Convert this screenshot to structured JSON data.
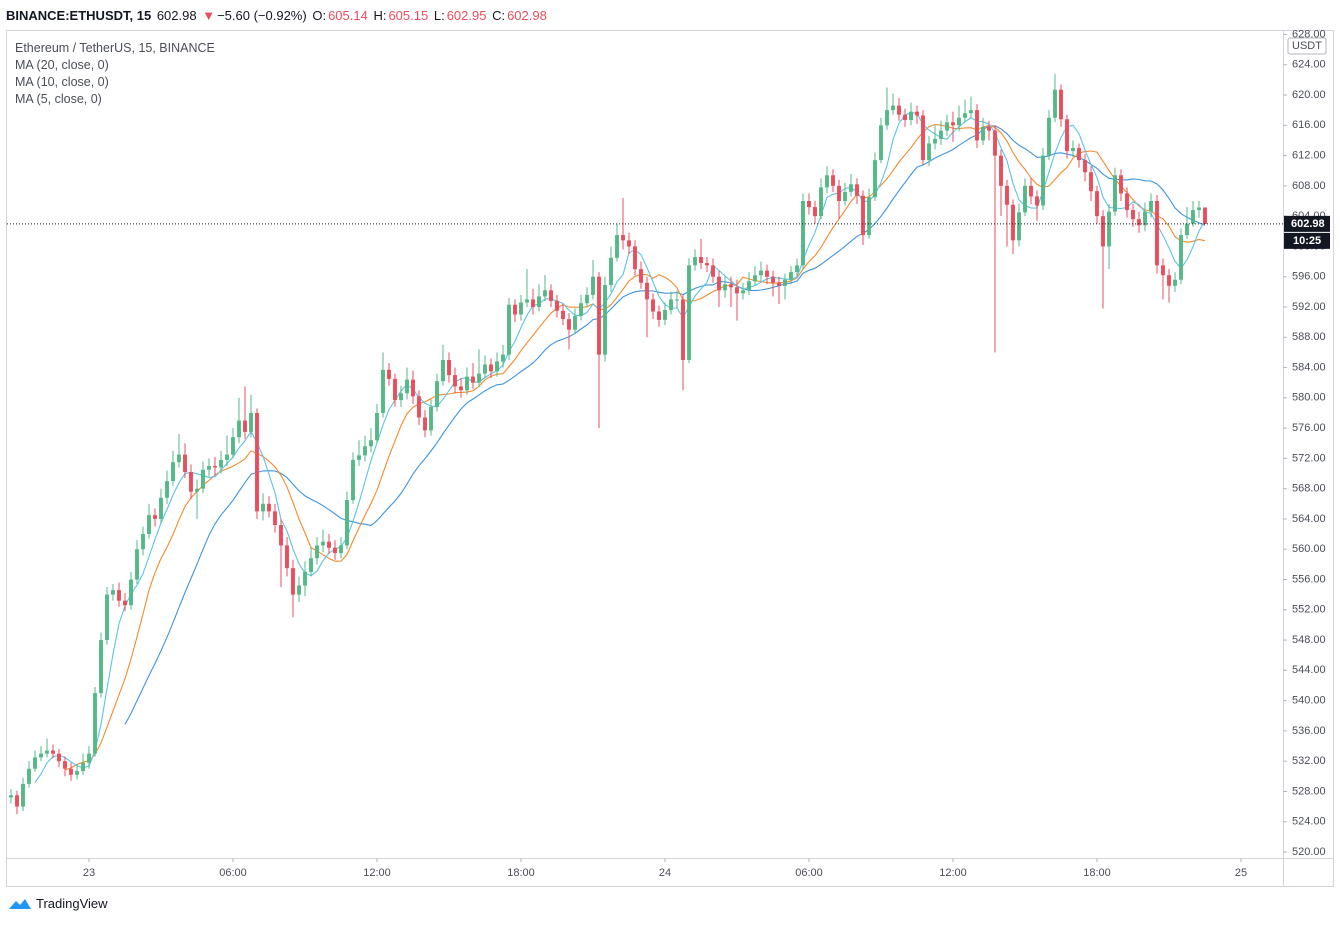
{
  "header": {
    "symbol": "BINANCE:ETHUSDT, 15",
    "arrow": "▼",
    "change": "−5.60 (−0.92%)",
    "o": "O:",
    "h": "H:",
    "l": "L:",
    "c": "C:"
  },
  "legend": {
    "title": "Ethereum / TetherUS, 15, BINANCE"
  },
  "axis_currency": "USDT",
  "countdown": "10:25",
  "brand": "TradingView",
  "chart_data": {
    "type": "candlestick",
    "up_color": "#53b987",
    "down_color": "#eb4d5c",
    "open": [
      527.2,
      527.5,
      526.0,
      529.0,
      531.0,
      532.5,
      533.0,
      533.4,
      533.0,
      532.0,
      531.0,
      530.2,
      530.7,
      531.8,
      533.0,
      541.0,
      548.0,
      554.0,
      554.6,
      553.2,
      552.6,
      556.0,
      560.0,
      562.0,
      564.5,
      564.0,
      566.8,
      569.0,
      571.5,
      572.5,
      570.2,
      567.6,
      568.0,
      570.5,
      571.0,
      570.8,
      571.8,
      572.5,
      574.8,
      577.0,
      575.5,
      578.0,
      565.0,
      566.0,
      565.0,
      563.2,
      560.5,
      557.5,
      554.0,
      555.2,
      557.0,
      558.8,
      560.5,
      561.0,
      560.2,
      559.5,
      560.5,
      566.5,
      571.8,
      572.4,
      573.6,
      574.4,
      578.0,
      583.7,
      582.5,
      579.7,
      580.6,
      582.4,
      580.2,
      577.4,
      575.7,
      578.8,
      582.2,
      585.0,
      583.0,
      581.5,
      581.0,
      582.8,
      582.0,
      583.2,
      584.4,
      583.5,
      584.8,
      585.7,
      592.3,
      591.0,
      592.6,
      593.0,
      592.0,
      593.4,
      594.2,
      592.8,
      591.5,
      590.4,
      589.0,
      590.8,
      592.5,
      593.6,
      596.0,
      585.7,
      594.9,
      598.5,
      601.5,
      600.8,
      600.0,
      597.0,
      595.2,
      593.0,
      591.4,
      590.3,
      591.6,
      593.0,
      593.0,
      585.0,
      597.5,
      598.6,
      597.8,
      597.5,
      596.0,
      594.2,
      595.0,
      594.6,
      593.8,
      594.2,
      595.4,
      596.2,
      596.8,
      596.0,
      595.2,
      594.8,
      595.6,
      596.6,
      597.5,
      606.0,
      605.2,
      604.0,
      607.8,
      609.4,
      608.0,
      606.0,
      607.2,
      608.2,
      606.7,
      601.5,
      606.5,
      611.4,
      616.0,
      618.0,
      618.6,
      617.4,
      616.7,
      617.8,
      617.3,
      611.4,
      613.6,
      614.2,
      615.3,
      616.4,
      616.0,
      617.0,
      617.6,
      618.0,
      614.0,
      615.8,
      615.3,
      612.0,
      608.0,
      605.5,
      600.8,
      604.5,
      608.0,
      606.6,
      605.4,
      612.0,
      617.0,
      620.7,
      616.8,
      612.6,
      613.0,
      611.4,
      609.8,
      607.3,
      604.0,
      600.0,
      604.6,
      609.4,
      607.0,
      604.8,
      603.6,
      602.8,
      604.6,
      606.0,
      597.5,
      596.2,
      594.8,
      595.6,
      601.5,
      603.0,
      604.8,
      605.14
    ],
    "high": [
      528.3,
      528.1,
      529.8,
      532.0,
      533.4,
      534.0,
      535.0,
      534.2,
      533.6,
      532.6,
      531.8,
      531.6,
      533.0,
      534.0,
      541.8,
      549.0,
      555.0,
      555.4,
      555.6,
      554.2,
      557.0,
      561.2,
      563.0,
      566.0,
      565.4,
      568.0,
      570.4,
      573.0,
      575.2,
      574.0,
      571.2,
      569.2,
      571.6,
      572.0,
      572.2,
      573.0,
      575.0,
      576.0,
      580.0,
      581.5,
      580.4,
      578.6,
      567.4,
      567.0,
      566.0,
      564.0,
      561.6,
      558.6,
      556.4,
      558.4,
      560.2,
      561.6,
      562.6,
      562.0,
      561.2,
      561.6,
      567.6,
      572.8,
      574.4,
      575.0,
      576.0,
      579.2,
      586.0,
      584.6,
      583.2,
      581.6,
      584.0,
      583.6,
      581.0,
      578.4,
      579.8,
      583.2,
      587.0,
      586.0,
      584.0,
      582.6,
      584.0,
      584.6,
      586.4,
      585.6,
      585.2,
      586.0,
      587.0,
      593.2,
      593.0,
      593.6,
      597.0,
      594.4,
      595.0,
      596.2,
      595.0,
      593.6,
      592.4,
      591.2,
      591.8,
      593.6,
      594.6,
      598.2,
      596.6,
      596.0,
      600.0,
      603.0,
      606.4,
      601.8,
      600.8,
      598.0,
      596.0,
      593.8,
      592.2,
      592.6,
      594.0,
      594.2,
      593.6,
      598.4,
      599.6,
      601.0,
      598.6,
      598.4,
      596.8,
      596.0,
      596.0,
      595.6,
      595.2,
      596.6,
      597.4,
      598.0,
      597.6,
      596.8,
      596.0,
      596.4,
      597.4,
      598.4,
      607.0,
      607.0,
      606.0,
      609.0,
      610.6,
      610.2,
      608.8,
      608.4,
      609.6,
      609.0,
      607.4,
      607.6,
      612.4,
      617.0,
      621.0,
      620.2,
      619.6,
      618.2,
      619.0,
      618.6,
      618.0,
      614.6,
      616.0,
      616.6,
      617.4,
      617.8,
      618.6,
      619.4,
      619.8,
      618.8,
      617.0,
      616.6,
      616.0,
      612.8,
      608.8,
      606.2,
      605.6,
      609.0,
      609.0,
      607.4,
      613.0,
      618.0,
      622.8,
      621.4,
      617.4,
      614.0,
      613.6,
      612.2,
      610.6,
      608.0,
      604.8,
      605.6,
      610.4,
      610.2,
      607.8,
      605.6,
      604.6,
      605.8,
      607.0,
      606.8,
      598.4,
      597.0,
      596.6,
      602.4,
      605.2,
      606.0,
      606.0,
      605.15
    ],
    "low": [
      526.4,
      525.0,
      525.4,
      528.5,
      530.6,
      532.0,
      532.5,
      532.4,
      531.2,
      530.0,
      529.4,
      529.6,
      530.2,
      531.0,
      532.6,
      540.4,
      547.4,
      553.2,
      552.4,
      551.8,
      552.0,
      555.4,
      559.2,
      561.4,
      563.0,
      563.4,
      566.0,
      568.4,
      570.8,
      569.4,
      566.6,
      564.0,
      567.4,
      569.6,
      569.8,
      570.0,
      571.0,
      572.0,
      574.0,
      574.6,
      574.8,
      564.0,
      563.8,
      564.2,
      562.2,
      555.0,
      556.4,
      551.0,
      553.0,
      553.8,
      556.4,
      558.0,
      559.6,
      559.4,
      558.6,
      558.8,
      560.0,
      566.0,
      571.0,
      571.6,
      572.8,
      574.0,
      577.4,
      581.6,
      578.8,
      578.8,
      579.8,
      579.2,
      576.4,
      574.8,
      575.0,
      578.2,
      581.6,
      582.0,
      580.6,
      580.0,
      580.4,
      581.2,
      581.4,
      582.6,
      582.6,
      582.8,
      584.0,
      585.0,
      590.0,
      590.2,
      592.0,
      591.0,
      591.4,
      592.8,
      592.0,
      590.6,
      589.6,
      586.4,
      588.4,
      590.2,
      592.0,
      593.0,
      576.0,
      584.8,
      594.0,
      598.0,
      599.6,
      599.0,
      596.2,
      594.4,
      588.0,
      590.4,
      589.4,
      589.6,
      591.0,
      591.8,
      581.0,
      584.6,
      596.8,
      597.0,
      596.6,
      595.2,
      592.0,
      593.2,
      592.0,
      590.2,
      593.0,
      593.6,
      594.8,
      595.4,
      595.0,
      593.4,
      592.4,
      593.0,
      595.0,
      596.0,
      597.0,
      604.2,
      603.0,
      603.6,
      607.0,
      607.2,
      603.6,
      605.4,
      606.6,
      605.6,
      600.2,
      601.0,
      606.0,
      611.0,
      615.4,
      617.4,
      616.6,
      615.8,
      616.0,
      616.2,
      610.8,
      610.6,
      612.8,
      613.4,
      614.6,
      613.8,
      615.2,
      616.4,
      617.0,
      613.0,
      613.4,
      614.0,
      586.0,
      604.0,
      600.0,
      599.0,
      600.0,
      604.0,
      605.6,
      603.4,
      604.8,
      611.4,
      616.4,
      615.8,
      611.6,
      611.8,
      610.4,
      608.6,
      606.0,
      603.0,
      591.8,
      597.0,
      604.0,
      606.0,
      603.8,
      602.6,
      601.8,
      602.0,
      603.8,
      596.4,
      593.0,
      592.6,
      594.0,
      595.0,
      601.0,
      602.6,
      603.8,
      602.95
    ],
    "close": [
      527.5,
      526.0,
      529.0,
      531.0,
      532.5,
      533.0,
      533.4,
      533.0,
      532.0,
      531.0,
      530.2,
      530.7,
      531.8,
      533.0,
      541.0,
      548.0,
      554.0,
      554.6,
      553.2,
      552.6,
      556.0,
      560.0,
      562.0,
      564.5,
      564.0,
      566.8,
      569.0,
      571.5,
      572.5,
      570.2,
      567.6,
      568.0,
      570.5,
      571.0,
      570.8,
      571.8,
      572.5,
      574.8,
      577.0,
      575.5,
      578.0,
      565.0,
      566.0,
      565.0,
      563.2,
      560.5,
      557.5,
      554.0,
      555.2,
      557.0,
      558.8,
      560.5,
      561.0,
      560.2,
      559.5,
      560.5,
      566.5,
      571.8,
      572.4,
      573.6,
      574.4,
      578.0,
      583.7,
      582.5,
      579.7,
      580.6,
      582.4,
      580.2,
      577.4,
      575.7,
      578.8,
      582.2,
      585.0,
      583.0,
      581.5,
      581.0,
      582.8,
      582.0,
      583.2,
      584.4,
      583.5,
      584.8,
      585.7,
      592.3,
      591.0,
      592.6,
      593.0,
      592.0,
      593.4,
      594.2,
      592.8,
      591.5,
      590.4,
      589.0,
      590.8,
      592.5,
      593.6,
      596.0,
      585.7,
      594.9,
      598.5,
      601.5,
      600.8,
      600.0,
      597.0,
      595.2,
      593.0,
      591.4,
      590.3,
      591.6,
      593.0,
      593.0,
      585.0,
      597.5,
      598.6,
      597.8,
      597.5,
      596.0,
      594.2,
      595.0,
      594.6,
      593.8,
      594.2,
      595.4,
      596.2,
      596.8,
      596.0,
      595.2,
      594.8,
      595.6,
      596.6,
      597.5,
      606.0,
      605.2,
      604.0,
      607.8,
      609.4,
      608.0,
      606.0,
      607.2,
      608.2,
      606.7,
      601.5,
      606.5,
      611.4,
      616.0,
      618.0,
      618.6,
      617.4,
      616.7,
      617.8,
      617.3,
      611.4,
      613.6,
      614.2,
      615.3,
      616.4,
      616.0,
      617.0,
      617.6,
      618.0,
      614.0,
      615.8,
      615.3,
      612.0,
      608.0,
      605.5,
      600.8,
      604.5,
      608.0,
      606.6,
      605.4,
      612.0,
      617.0,
      620.7,
      616.8,
      612.6,
      613.0,
      611.4,
      609.8,
      607.3,
      604.0,
      600.0,
      604.6,
      609.4,
      607.0,
      604.8,
      603.6,
      602.8,
      604.6,
      606.0,
      597.5,
      596.2,
      594.8,
      595.6,
      601.5,
      603.0,
      604.8,
      605.14,
      602.98
    ],
    "indicators": [
      {
        "name": "MA (20, close, 0)",
        "color": "#3d95e0"
      },
      {
        "name": "MA (10, close, 0)",
        "color": "#f58a2c"
      },
      {
        "name": "MA (5, close, 0)",
        "color": "#5bc3e6"
      }
    ],
    "xlim": [
      -0.667,
      212
    ],
    "xticks": [
      {
        "value": 13,
        "label": "23"
      },
      {
        "value": 37,
        "label": "06:00"
      },
      {
        "value": 61,
        "label": "12:00"
      },
      {
        "value": 85,
        "label": "18:00"
      },
      {
        "value": 109,
        "label": "24"
      },
      {
        "value": 133,
        "label": "06:00"
      },
      {
        "value": 157,
        "label": "12:00"
      },
      {
        "value": 181,
        "label": "18:00"
      },
      {
        "value": 205,
        "label": "25"
      }
    ],
    "ylim": [
      519.21,
      628.59
    ],
    "yticks": [
      {
        "value": 520,
        "label": "520.00"
      },
      {
        "value": 524,
        "label": "524.00"
      },
      {
        "value": 528,
        "label": "528.00"
      },
      {
        "value": 532,
        "label": "532.00"
      },
      {
        "value": 536,
        "label": "536.00"
      },
      {
        "value": 540,
        "label": "540.00"
      },
      {
        "value": 544,
        "label": "544.00"
      },
      {
        "value": 548,
        "label": "548.00"
      },
      {
        "value": 552,
        "label": "552.00"
      },
      {
        "value": 556,
        "label": "556.00"
      },
      {
        "value": 560,
        "label": "560.00"
      },
      {
        "value": 564,
        "label": "564.00"
      },
      {
        "value": 568,
        "label": "568.00"
      },
      {
        "value": 572,
        "label": "572.00"
      },
      {
        "value": 576,
        "label": "576.00"
      },
      {
        "value": 580,
        "label": "580.00"
      },
      {
        "value": 584,
        "label": "584.00"
      },
      {
        "value": 588,
        "label": "588.00"
      },
      {
        "value": 592,
        "label": "592.00"
      },
      {
        "value": 596,
        "label": "596.00"
      },
      {
        "value": 600,
        "label": "600.00"
      },
      {
        "value": 604,
        "label": "604.00"
      },
      {
        "value": 608,
        "label": "608.00"
      },
      {
        "value": 612,
        "label": "612.00"
      },
      {
        "value": 616,
        "label": "616.00"
      },
      {
        "value": 620,
        "label": "620.00"
      },
      {
        "value": 624,
        "label": "624.00"
      },
      {
        "value": 628,
        "label": "628.00"
      }
    ],
    "grid": false
  }
}
